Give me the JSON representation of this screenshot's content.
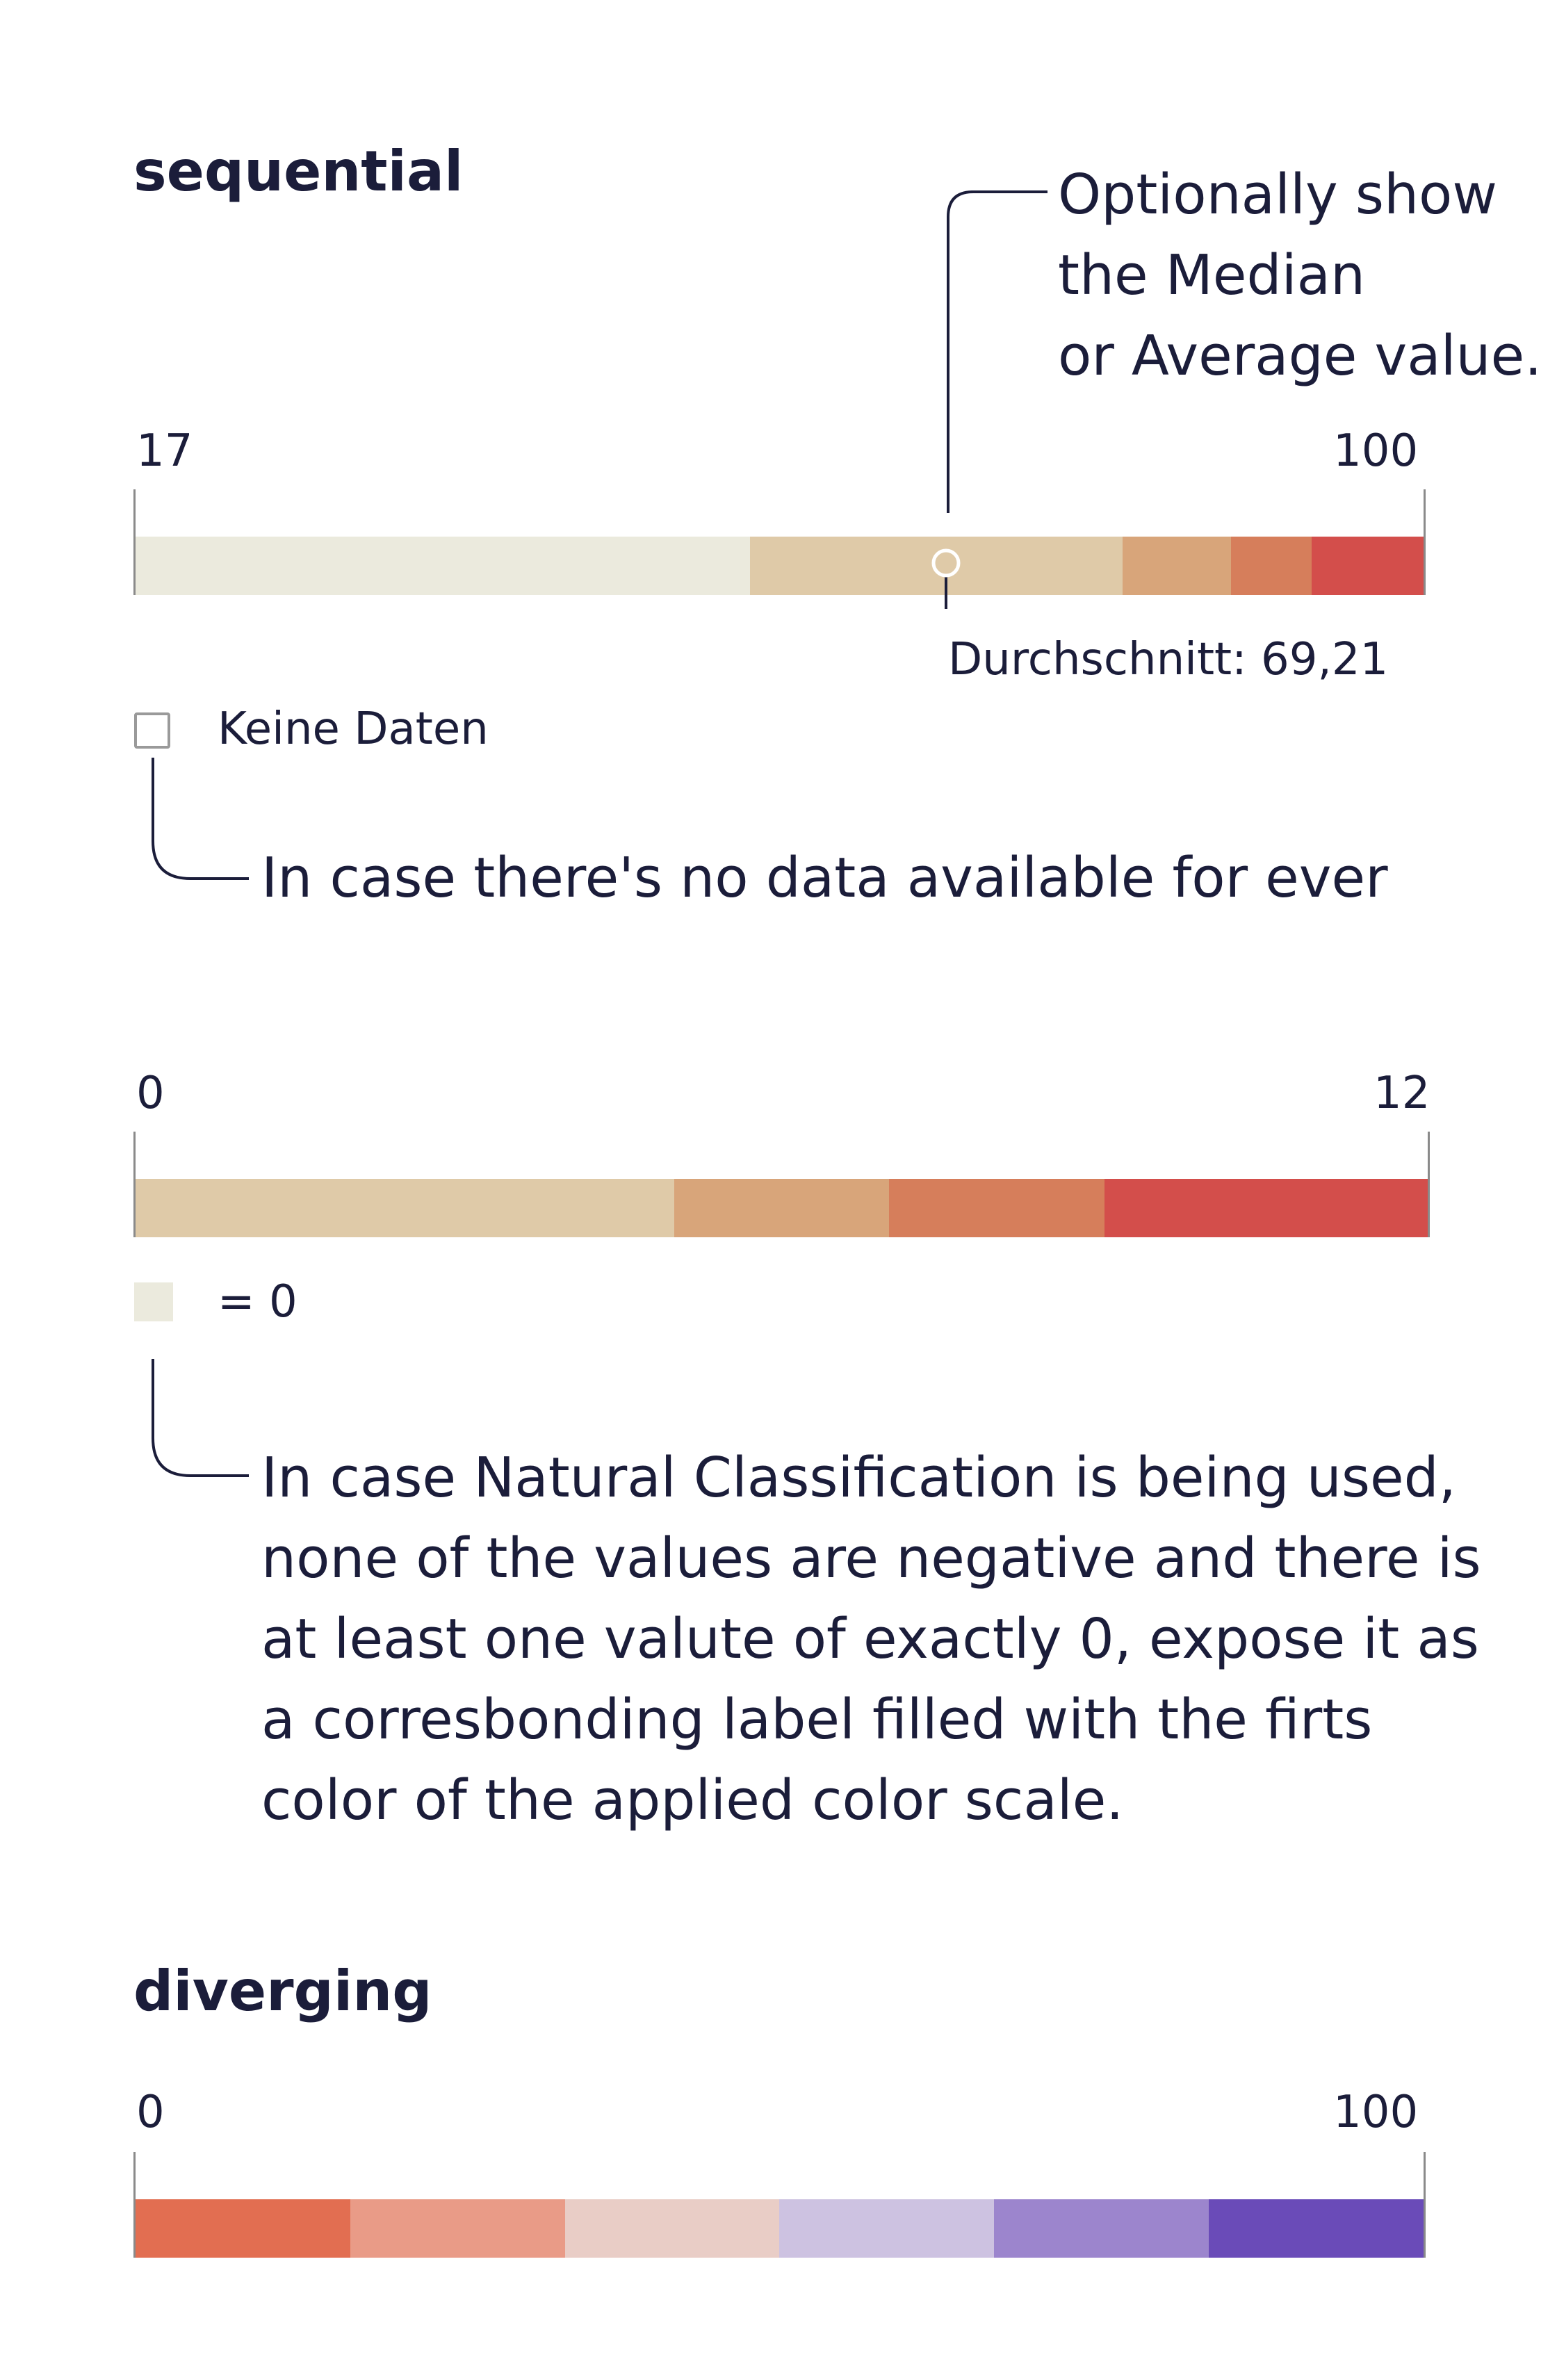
{
  "sequential": {
    "heading": "sequential",
    "min_label": "17",
    "max_label": "100",
    "scale_min": 17,
    "scale_max": 100,
    "segments": [
      {
        "from": 17,
        "to": 56.6,
        "color": "#ebeadd"
      },
      {
        "from": 56.6,
        "to": 80.6,
        "color": "#dfcaa8"
      },
      {
        "from": 80.6,
        "to": 87.6,
        "color": "#d8a57a"
      },
      {
        "from": 87.6,
        "to": 92.8,
        "color": "#d67e5b"
      },
      {
        "from": 92.8,
        "to": 100,
        "color": "#d34e4b"
      }
    ],
    "average_value": 69.21,
    "average_label": "Durchschnitt: 69,21",
    "median_annotation": [
      "Optionally show",
      "the Median",
      "or Average value."
    ],
    "no_data": {
      "label": "Keine Daten",
      "swatch_border": "#9a9a9a",
      "annotation": "In case there's no data available for ever"
    }
  },
  "natural": {
    "min_label": "0",
    "max_label": "12",
    "segment_weights": [
      5,
      2,
      2,
      3
    ],
    "segment_colors": [
      "#dfcaa8",
      "#d8a57a",
      "#d67e5b",
      "#d34e4b"
    ],
    "zero_label": "= 0",
    "zero_color": "#ebeadd",
    "annotation": [
      "In case Natural Classification is being used,",
      "none of the values are negative and there is",
      "at least one valute of exactly 0, expose it as",
      "a corresbonding label filled with the firts",
      "color of the applied color scale."
    ]
  },
  "diverging": {
    "heading": "diverging",
    "min_label": "0",
    "max_label": "100",
    "segment_weights": [
      1,
      1,
      1,
      1,
      1,
      1
    ],
    "segment_colors": [
      "#e26e51",
      "#e99b87",
      "#e9cdc6",
      "#cdc2e1",
      "#9c85cd",
      "#6a4bb8"
    ]
  }
}
